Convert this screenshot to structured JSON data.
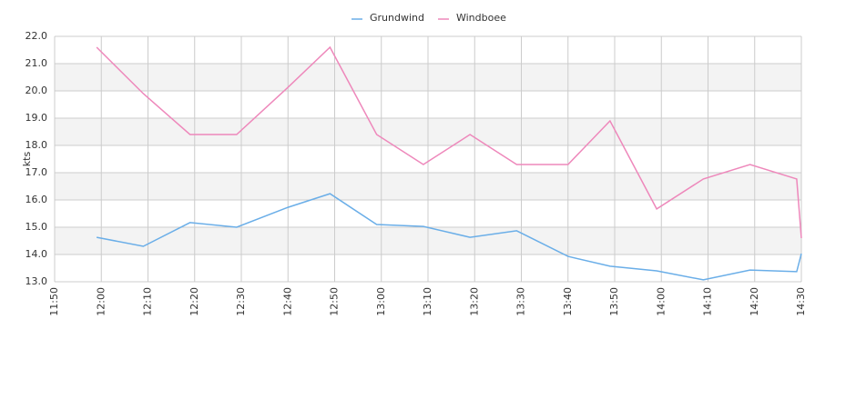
{
  "chart_data": {
    "type": "line",
    "y_label": "kts",
    "x": [
      "11:59",
      "12:09",
      "12:19",
      "12:29",
      "12:40",
      "12:49",
      "12:59",
      "13:09",
      "13:19",
      "13:29",
      "13:40",
      "13:49",
      "13:59",
      "14:09",
      "14:19",
      "14:29",
      "14:30"
    ],
    "series": [
      {
        "name": "Grundwind",
        "color": "#6aaee8",
        "values": [
          14.63,
          14.3,
          15.17,
          15.0,
          15.73,
          16.23,
          15.1,
          15.03,
          14.63,
          14.87,
          13.93,
          13.57,
          13.4,
          13.07,
          13.43,
          13.37,
          14.03
        ]
      },
      {
        "name": "Windboee",
        "color": "#ee88bb",
        "values": [
          21.6,
          19.9,
          18.4,
          18.4,
          20.13,
          21.6,
          18.4,
          17.3,
          18.4,
          17.3,
          17.3,
          18.9,
          15.67,
          16.77,
          17.3,
          16.77,
          14.6
        ]
      }
    ],
    "xlim": [
      "11:50",
      "14:30"
    ],
    "xticks": [
      "11:50",
      "12:00",
      "12:10",
      "12:20",
      "12:30",
      "12:40",
      "12:50",
      "13:00",
      "13:10",
      "13:20",
      "13:30",
      "13:40",
      "13:50",
      "14:00",
      "14:10",
      "14:20",
      "14:30"
    ],
    "ylim": [
      13,
      22
    ],
    "yticks": [
      {
        "value": 13,
        "label": "13.0"
      },
      {
        "value": 14,
        "label": "14.0"
      },
      {
        "value": 15,
        "label": "15.0"
      },
      {
        "value": 16,
        "label": "16.0"
      },
      {
        "value": 17,
        "label": "17.0"
      },
      {
        "value": 18,
        "label": "18.0"
      },
      {
        "value": 19,
        "label": "19.0"
      },
      {
        "value": 20,
        "label": "20.0"
      },
      {
        "value": 21,
        "label": "21.0"
      },
      {
        "value": 22,
        "label": "22.0"
      }
    ],
    "grid": true,
    "legend": "top"
  }
}
